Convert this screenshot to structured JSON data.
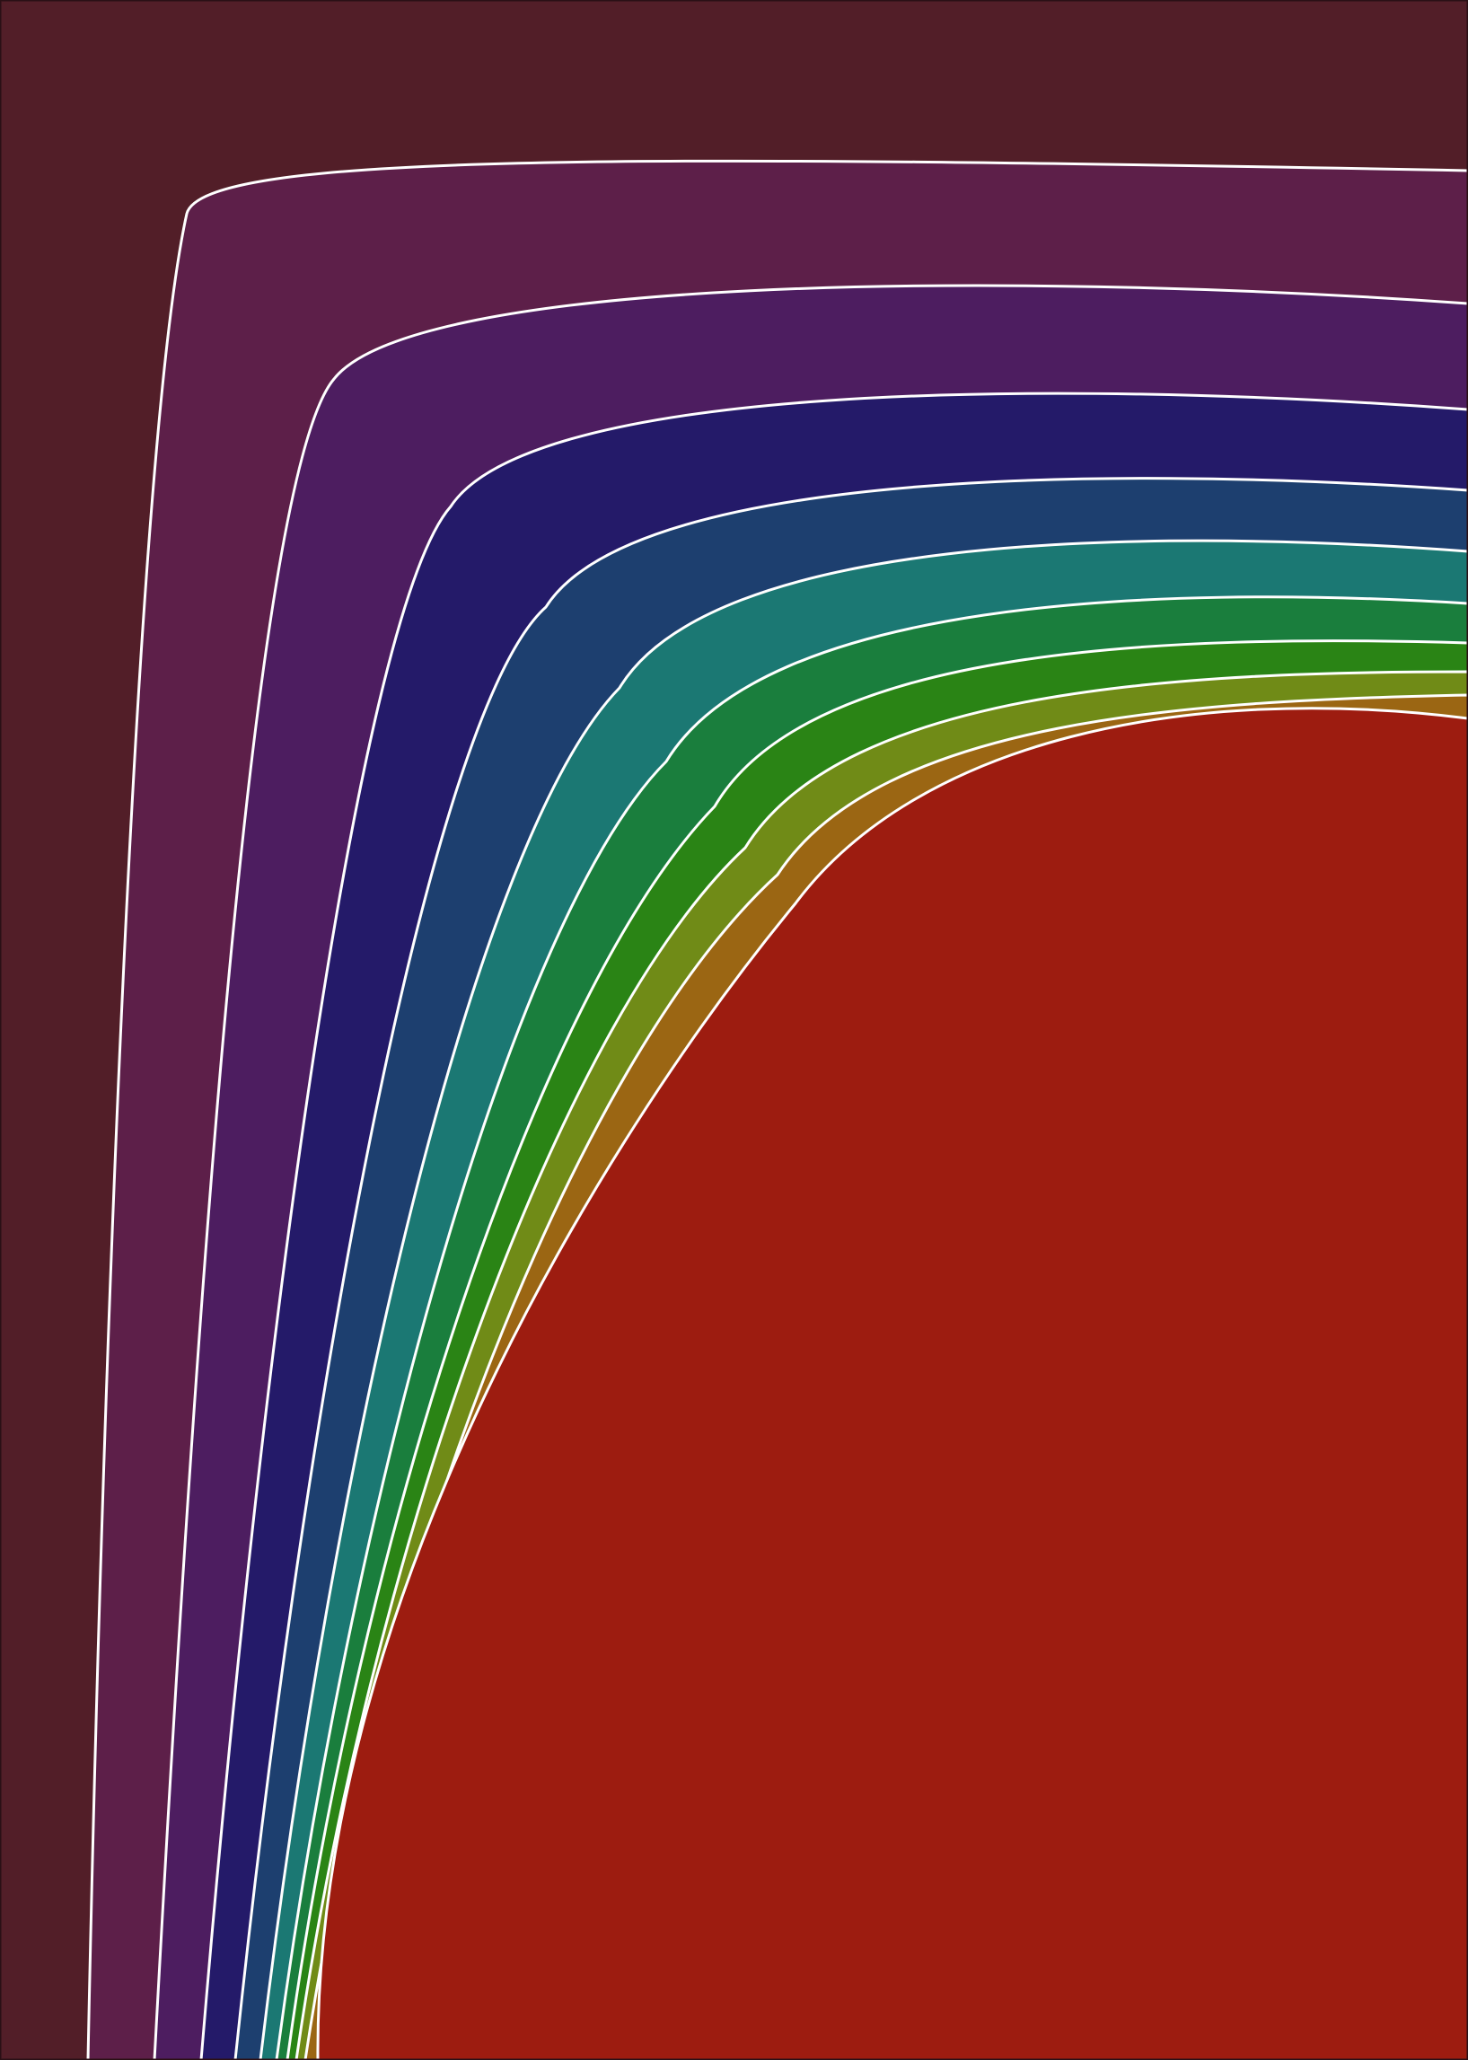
{
  "artwork": {
    "background_color": "#521e28",
    "frame_color": "#2a1015",
    "divider_color": "#ffffff",
    "bands": [
      {
        "name": "plum",
        "color": "#5d1f49"
      },
      {
        "name": "purple",
        "color": "#4d1d60"
      },
      {
        "name": "indigo",
        "color": "#241a69"
      },
      {
        "name": "navy-teal",
        "color": "#1d3f6f"
      },
      {
        "name": "teal",
        "color": "#1b7873"
      },
      {
        "name": "green",
        "color": "#1a7e3d"
      },
      {
        "name": "bright-green",
        "color": "#2a8415"
      },
      {
        "name": "olive",
        "color": "#708b17"
      },
      {
        "name": "ochre",
        "color": "#9b6613"
      },
      {
        "name": "red-core",
        "color": "#9d1c10"
      }
    ]
  }
}
